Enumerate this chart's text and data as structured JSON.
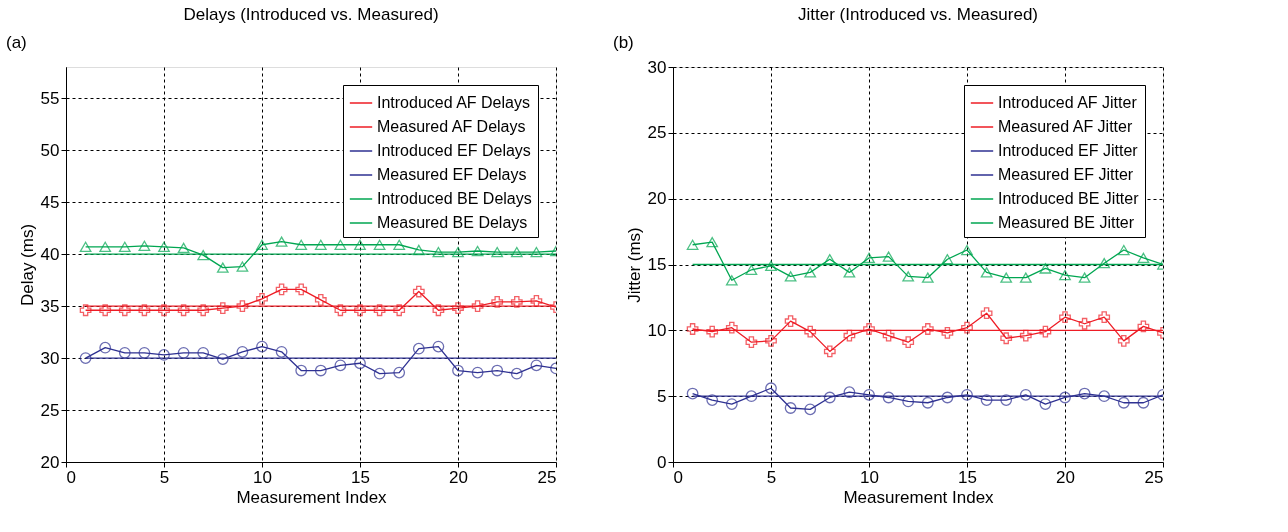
{
  "chart_data": [
    {
      "type": "line",
      "title": "Delays (Introduced vs. Measured)",
      "xlabel": "Measurement Index",
      "ylabel": "Delay (ms)",
      "annotations": [
        "(a)"
      ],
      "x": [
        1,
        2,
        3,
        4,
        5,
        6,
        7,
        8,
        9,
        10,
        11,
        12,
        13,
        14,
        15,
        16,
        17,
        18,
        19,
        20,
        21,
        22,
        23,
        24,
        25
      ],
      "xlim": [
        0,
        25
      ],
      "xticks": [
        0,
        5,
        10,
        15,
        20,
        25
      ],
      "ylim": [
        20,
        58
      ],
      "yticks": [
        20,
        25,
        30,
        35,
        40,
        45,
        50,
        55
      ],
      "grid": true,
      "legend": "top right",
      "series": [
        {
          "name": "Introduced AF Delays",
          "color": "#ee1c25",
          "marker": "none",
          "values": [
            35,
            35,
            35,
            35,
            35,
            35,
            35,
            35,
            35,
            35,
            35,
            35,
            35,
            35,
            35,
            35,
            35,
            35,
            35,
            35,
            35,
            35,
            35,
            35,
            35
          ]
        },
        {
          "name": "Measured AF Delays",
          "color": "#ee1c25",
          "marker": "cross",
          "values": [
            34.6,
            34.6,
            34.6,
            34.6,
            34.6,
            34.6,
            34.6,
            34.8,
            35.0,
            35.7,
            36.6,
            36.6,
            35.6,
            34.6,
            34.6,
            34.6,
            34.6,
            36.4,
            34.6,
            34.8,
            35.0,
            35.4,
            35.4,
            35.5,
            34.9
          ]
        },
        {
          "name": "Introduced EF Delays",
          "color": "#2e3192",
          "marker": "none",
          "values": [
            30,
            30,
            30,
            30,
            30,
            30,
            30,
            30,
            30,
            30,
            30,
            30,
            30,
            30,
            30,
            30,
            30,
            30,
            30,
            30,
            30,
            30,
            30,
            30,
            30
          ]
        },
        {
          "name": "Measured EF Delays",
          "color": "#2e3192",
          "marker": "circle",
          "values": [
            30.0,
            31.0,
            30.5,
            30.5,
            30.3,
            30.5,
            30.5,
            29.9,
            30.6,
            31.1,
            30.6,
            28.8,
            28.8,
            29.3,
            29.5,
            28.5,
            28.6,
            30.9,
            31.1,
            28.8,
            28.6,
            28.8,
            28.5,
            29.3,
            29.0
          ]
        },
        {
          "name": "Introduced BE Delays",
          "color": "#00a651",
          "marker": "none",
          "values": [
            40,
            40,
            40,
            40,
            40,
            40,
            40,
            40,
            40,
            40,
            40,
            40,
            40,
            40,
            40,
            40,
            40,
            40,
            40,
            40,
            40,
            40,
            40,
            40,
            40
          ]
        },
        {
          "name": "Measured BE Delays",
          "color": "#00a651",
          "marker": "triangle",
          "values": [
            40.7,
            40.7,
            40.7,
            40.8,
            40.7,
            40.6,
            39.9,
            38.7,
            38.8,
            40.9,
            41.2,
            40.9,
            40.9,
            40.9,
            40.9,
            40.9,
            40.9,
            40.4,
            40.2,
            40.2,
            40.3,
            40.2,
            40.2,
            40.2,
            40.3
          ]
        }
      ]
    },
    {
      "type": "line",
      "title": "Jitter (Introduced vs. Measured)",
      "xlabel": "Measurement Index",
      "ylabel": "Jitter (ms)",
      "annotations": [
        "(b)"
      ],
      "x": [
        1,
        2,
        3,
        4,
        5,
        6,
        7,
        8,
        9,
        10,
        11,
        12,
        13,
        14,
        15,
        16,
        17,
        18,
        19,
        20,
        21,
        22,
        23,
        24,
        25
      ],
      "xlim": [
        0,
        25
      ],
      "xticks": [
        0,
        5,
        10,
        15,
        20,
        25
      ],
      "ylim": [
        0,
        30
      ],
      "yticks": [
        0,
        5,
        10,
        15,
        20,
        25,
        30
      ],
      "grid": true,
      "legend": "top right",
      "series": [
        {
          "name": "Introduced AF Jitter",
          "color": "#ee1c25",
          "marker": "none",
          "values": [
            10,
            10,
            10,
            10,
            10,
            10,
            10,
            10,
            10,
            10,
            10,
            10,
            10,
            10,
            10,
            10,
            10,
            10,
            10,
            10,
            10,
            10,
            10,
            10,
            10
          ]
        },
        {
          "name": "Measured AF Jitter",
          "color": "#ee1c25",
          "marker": "cross",
          "values": [
            10.1,
            9.9,
            10.2,
            9.1,
            9.2,
            10.7,
            9.9,
            8.4,
            9.6,
            10.1,
            9.6,
            9.1,
            10.1,
            9.8,
            10.2,
            11.3,
            9.4,
            9.6,
            9.9,
            11.0,
            10.5,
            11.0,
            9.2,
            10.3,
            9.8
          ]
        },
        {
          "name": "Introduced EF Jitter",
          "color": "#2e3192",
          "marker": "none",
          "values": [
            5,
            5,
            5,
            5,
            5,
            5,
            5,
            5,
            5,
            5,
            5,
            5,
            5,
            5,
            5,
            5,
            5,
            5,
            5,
            5,
            5,
            5,
            5,
            5,
            5
          ]
        },
        {
          "name": "Measured EF Jitter",
          "color": "#2e3192",
          "marker": "circle",
          "values": [
            5.2,
            4.7,
            4.4,
            5.0,
            5.6,
            4.1,
            4.0,
            4.9,
            5.3,
            5.1,
            4.9,
            4.6,
            4.5,
            4.9,
            5.1,
            4.7,
            4.7,
            5.1,
            4.4,
            4.9,
            5.2,
            5.0,
            4.5,
            4.5,
            5.1
          ]
        },
        {
          "name": "Introduced BE Jitter",
          "color": "#00a651",
          "marker": "none",
          "values": [
            15,
            15,
            15,
            15,
            15,
            15,
            15,
            15,
            15,
            15,
            15,
            15,
            15,
            15,
            15,
            15,
            15,
            15,
            15,
            15,
            15,
            15,
            15,
            15,
            15
          ]
        },
        {
          "name": "Measured BE Jitter",
          "color": "#00a651",
          "marker": "triangle",
          "values": [
            16.5,
            16.7,
            13.8,
            14.6,
            14.9,
            14.1,
            14.4,
            15.4,
            14.4,
            15.5,
            15.6,
            14.1,
            14.0,
            15.4,
            16.1,
            14.4,
            14.0,
            14.0,
            14.7,
            14.2,
            14.0,
            15.1,
            16.1,
            15.5,
            15.0
          ]
        }
      ]
    }
  ]
}
